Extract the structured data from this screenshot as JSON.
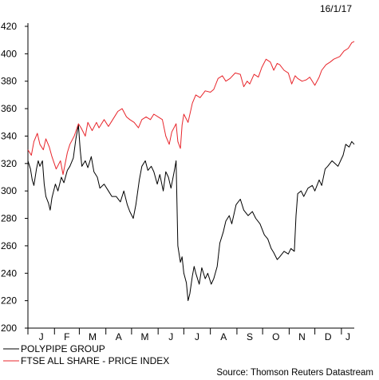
{
  "date_label": "16/1/17",
  "source": "Source: Thomson Reuters Datastream",
  "legend": [
    {
      "label": "POLYPIPE GROUP",
      "color": "#000000"
    },
    {
      "label": "FTSE ALL SHARE - PRICE INDEX",
      "color": "#e8252b"
    }
  ],
  "chart_data": {
    "type": "line",
    "title": "",
    "xlabel": "",
    "ylabel": "",
    "ylim": [
      200,
      420
    ],
    "yticks": [
      200,
      220,
      240,
      260,
      280,
      300,
      320,
      340,
      360,
      380,
      400,
      420
    ],
    "x_domain": [
      "2016-01-01",
      "2017-01-16"
    ],
    "x_month_labels": [
      "J",
      "F",
      "M",
      "A",
      "M",
      "J",
      "J",
      "A",
      "S",
      "O",
      "N",
      "D",
      "J"
    ],
    "grid": false,
    "legend_position": "bottom-left",
    "series": [
      {
        "name": "POLYPIPE GROUP",
        "color": "#000000",
        "points": [
          [
            "2016-01-01",
            322
          ],
          [
            "2016-01-04",
            316
          ],
          [
            "2016-01-06",
            308
          ],
          [
            "2016-01-08",
            304
          ],
          [
            "2016-01-11",
            316
          ],
          [
            "2016-01-13",
            322
          ],
          [
            "2016-01-15",
            318
          ],
          [
            "2016-01-18",
            322
          ],
          [
            "2016-01-20",
            305
          ],
          [
            "2016-01-22",
            296
          ],
          [
            "2016-01-25",
            291
          ],
          [
            "2016-01-27",
            286
          ],
          [
            "2016-01-29",
            295
          ],
          [
            "2016-02-02",
            305
          ],
          [
            "2016-02-05",
            300
          ],
          [
            "2016-02-09",
            310
          ],
          [
            "2016-02-12",
            306
          ],
          [
            "2016-02-16",
            315
          ],
          [
            "2016-02-19",
            318
          ],
          [
            "2016-02-23",
            324
          ],
          [
            "2016-02-26",
            338
          ],
          [
            "2016-02-29",
            348
          ],
          [
            "2016-03-02",
            330
          ],
          [
            "2016-03-04",
            318
          ],
          [
            "2016-03-08",
            322
          ],
          [
            "2016-03-11",
            317
          ],
          [
            "2016-03-15",
            325
          ],
          [
            "2016-03-18",
            314
          ],
          [
            "2016-03-22",
            310
          ],
          [
            "2016-03-25",
            302
          ],
          [
            "2016-03-30",
            305
          ],
          [
            "2016-04-04",
            300
          ],
          [
            "2016-04-08",
            296
          ],
          [
            "2016-04-13",
            296
          ],
          [
            "2016-04-18",
            292
          ],
          [
            "2016-04-22",
            300
          ],
          [
            "2016-04-26",
            290
          ],
          [
            "2016-04-29",
            285
          ],
          [
            "2016-05-03",
            280
          ],
          [
            "2016-05-06",
            290
          ],
          [
            "2016-05-10",
            308
          ],
          [
            "2016-05-13",
            318
          ],
          [
            "2016-05-17",
            322
          ],
          [
            "2016-05-20",
            315
          ],
          [
            "2016-05-24",
            318
          ],
          [
            "2016-05-27",
            314
          ],
          [
            "2016-05-31",
            305
          ],
          [
            "2016-06-03",
            312
          ],
          [
            "2016-06-07",
            300
          ],
          [
            "2016-06-10",
            314
          ],
          [
            "2016-06-13",
            310
          ],
          [
            "2016-06-16",
            302
          ],
          [
            "2016-06-20",
            315
          ],
          [
            "2016-06-22",
            322
          ],
          [
            "2016-06-24",
            260
          ],
          [
            "2016-06-27",
            248
          ],
          [
            "2016-06-29",
            252
          ],
          [
            "2016-07-01",
            240
          ],
          [
            "2016-07-04",
            233
          ],
          [
            "2016-07-06",
            220
          ],
          [
            "2016-07-08",
            225
          ],
          [
            "2016-07-11",
            238
          ],
          [
            "2016-07-13",
            245
          ],
          [
            "2016-07-15",
            240
          ],
          [
            "2016-07-19",
            232
          ],
          [
            "2016-07-22",
            244
          ],
          [
            "2016-07-26",
            236
          ],
          [
            "2016-07-29",
            240
          ],
          [
            "2016-08-02",
            232
          ],
          [
            "2016-08-05",
            236
          ],
          [
            "2016-08-09",
            245
          ],
          [
            "2016-08-12",
            262
          ],
          [
            "2016-08-16",
            270
          ],
          [
            "2016-08-19",
            278
          ],
          [
            "2016-08-23",
            282
          ],
          [
            "2016-08-26",
            276
          ],
          [
            "2016-08-31",
            290
          ],
          [
            "2016-09-05",
            294
          ],
          [
            "2016-09-09",
            286
          ],
          [
            "2016-09-14",
            282
          ],
          [
            "2016-09-19",
            285
          ],
          [
            "2016-09-23",
            280
          ],
          [
            "2016-09-28",
            276
          ],
          [
            "2016-10-03",
            268
          ],
          [
            "2016-10-07",
            265
          ],
          [
            "2016-10-11",
            258
          ],
          [
            "2016-10-14",
            255
          ],
          [
            "2016-10-18",
            250
          ],
          [
            "2016-10-21",
            252
          ],
          [
            "2016-10-26",
            256
          ],
          [
            "2016-10-31",
            254
          ],
          [
            "2016-11-03",
            258
          ],
          [
            "2016-11-07",
            256
          ],
          [
            "2016-11-09",
            282
          ],
          [
            "2016-11-11",
            298
          ],
          [
            "2016-11-15",
            300
          ],
          [
            "2016-11-18",
            296
          ],
          [
            "2016-11-23",
            302
          ],
          [
            "2016-11-28",
            304
          ],
          [
            "2016-12-01",
            300
          ],
          [
            "2016-12-06",
            308
          ],
          [
            "2016-12-09",
            304
          ],
          [
            "2016-12-13",
            316
          ],
          [
            "2016-12-16",
            318
          ],
          [
            "2016-12-21",
            322
          ],
          [
            "2016-12-28",
            318
          ],
          [
            "2017-01-03",
            326
          ],
          [
            "2017-01-06",
            334
          ],
          [
            "2017-01-10",
            332
          ],
          [
            "2017-01-13",
            336
          ],
          [
            "2017-01-16",
            334
          ]
        ]
      },
      {
        "name": "FTSE ALL SHARE - PRICE INDEX",
        "color": "#e8252b",
        "points": [
          [
            "2016-01-01",
            330
          ],
          [
            "2016-01-05",
            326
          ],
          [
            "2016-01-08",
            336
          ],
          [
            "2016-01-12",
            342
          ],
          [
            "2016-01-15",
            334
          ],
          [
            "2016-01-19",
            330
          ],
          [
            "2016-01-22",
            338
          ],
          [
            "2016-01-26",
            332
          ],
          [
            "2016-01-29",
            325
          ],
          [
            "2016-02-03",
            316
          ],
          [
            "2016-02-08",
            322
          ],
          [
            "2016-02-11",
            312
          ],
          [
            "2016-02-16",
            328
          ],
          [
            "2016-02-19",
            334
          ],
          [
            "2016-02-24",
            340
          ],
          [
            "2016-02-29",
            349
          ],
          [
            "2016-03-03",
            346
          ],
          [
            "2016-03-08",
            340
          ],
          [
            "2016-03-11",
            350
          ],
          [
            "2016-03-16",
            344
          ],
          [
            "2016-03-21",
            350
          ],
          [
            "2016-03-24",
            346
          ],
          [
            "2016-03-30",
            352
          ],
          [
            "2016-04-04",
            347
          ],
          [
            "2016-04-07",
            350
          ],
          [
            "2016-04-12",
            355
          ],
          [
            "2016-04-15",
            358
          ],
          [
            "2016-04-20",
            360
          ],
          [
            "2016-04-25",
            354
          ],
          [
            "2016-04-29",
            352
          ],
          [
            "2016-05-04",
            350
          ],
          [
            "2016-05-09",
            346
          ],
          [
            "2016-05-13",
            352
          ],
          [
            "2016-05-18",
            354
          ],
          [
            "2016-05-23",
            352
          ],
          [
            "2016-05-27",
            356
          ],
          [
            "2016-06-01",
            354
          ],
          [
            "2016-06-06",
            352
          ],
          [
            "2016-06-10",
            340
          ],
          [
            "2016-06-14",
            334
          ],
          [
            "2016-06-17",
            343
          ],
          [
            "2016-06-22",
            349
          ],
          [
            "2016-06-24",
            336
          ],
          [
            "2016-06-27",
            331
          ],
          [
            "2016-06-29",
            348
          ],
          [
            "2016-07-01",
            356
          ],
          [
            "2016-07-06",
            350
          ],
          [
            "2016-07-11",
            364
          ],
          [
            "2016-07-15",
            370
          ],
          [
            "2016-07-20",
            368
          ],
          [
            "2016-07-26",
            373
          ],
          [
            "2016-08-01",
            372
          ],
          [
            "2016-08-05",
            374
          ],
          [
            "2016-08-10",
            382
          ],
          [
            "2016-08-15",
            384
          ],
          [
            "2016-08-19",
            380
          ],
          [
            "2016-08-24",
            382
          ],
          [
            "2016-08-30",
            386
          ],
          [
            "2016-09-05",
            385
          ],
          [
            "2016-09-09",
            376
          ],
          [
            "2016-09-13",
            380
          ],
          [
            "2016-09-16",
            378
          ],
          [
            "2016-09-21",
            385
          ],
          [
            "2016-09-26",
            383
          ],
          [
            "2016-09-30",
            390
          ],
          [
            "2016-10-05",
            396
          ],
          [
            "2016-10-10",
            394
          ],
          [
            "2016-10-14",
            388
          ],
          [
            "2016-10-18",
            393
          ],
          [
            "2016-10-21",
            392
          ],
          [
            "2016-10-26",
            388
          ],
          [
            "2016-10-31",
            386
          ],
          [
            "2016-11-04",
            378
          ],
          [
            "2016-11-08",
            384
          ],
          [
            "2016-11-11",
            382
          ],
          [
            "2016-11-16",
            380
          ],
          [
            "2016-11-21",
            381
          ],
          [
            "2016-11-25",
            383
          ],
          [
            "2016-12-01",
            377
          ],
          [
            "2016-12-06",
            383
          ],
          [
            "2016-12-09",
            388
          ],
          [
            "2016-12-14",
            392
          ],
          [
            "2016-12-19",
            394
          ],
          [
            "2016-12-23",
            396
          ],
          [
            "2016-12-30",
            398
          ],
          [
            "2017-01-04",
            402
          ],
          [
            "2017-01-09",
            404
          ],
          [
            "2017-01-13",
            408
          ],
          [
            "2017-01-16",
            409
          ]
        ]
      }
    ]
  }
}
